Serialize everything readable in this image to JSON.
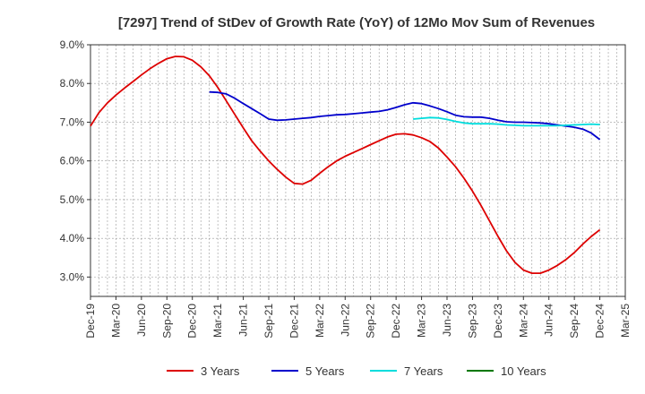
{
  "chart_data": {
    "type": "line",
    "title": "[7297]  Trend of StDev of Growth Rate (YoY) of 12Mo Mov Sum of Revenues",
    "xlabel": "",
    "ylabel": "",
    "ylim": [
      2.5,
      9.0
    ],
    "y_ticks": [
      3.0,
      4.0,
      5.0,
      6.0,
      7.0,
      8.0,
      9.0
    ],
    "y_tick_labels": [
      "3.0%",
      "4.0%",
      "5.0%",
      "6.0%",
      "7.0%",
      "8.0%",
      "9.0%"
    ],
    "x_tick_labels": [
      "Dec-19",
      "Mar-20",
      "Jun-20",
      "Sep-20",
      "Dec-20",
      "Mar-21",
      "Jun-21",
      "Sep-21",
      "Dec-21",
      "Mar-22",
      "Jun-22",
      "Sep-22",
      "Dec-22",
      "Mar-23",
      "Jun-23",
      "Sep-23",
      "Dec-23",
      "Mar-24",
      "Jun-24",
      "Sep-24",
      "Dec-24",
      "Mar-25"
    ],
    "x_range_months": [
      0,
      63
    ],
    "grid": true,
    "legend_position": "bottom",
    "series": [
      {
        "name": "3 Years",
        "color": "#dd0000",
        "x": [
          0,
          1,
          2,
          3,
          4,
          5,
          6,
          7,
          8,
          9,
          10,
          11,
          12,
          13,
          14,
          15,
          16,
          17,
          18,
          19,
          20,
          21,
          22,
          23,
          24,
          25,
          26,
          27,
          28,
          29,
          30,
          31,
          32,
          33,
          34,
          35,
          36,
          37,
          38,
          39,
          40,
          41,
          42,
          43,
          44,
          45,
          46,
          47,
          48,
          49,
          50,
          51,
          52,
          53,
          54,
          55,
          56,
          57,
          58,
          59,
          60
        ],
        "values": [
          6.9,
          7.25,
          7.5,
          7.7,
          7.88,
          8.05,
          8.22,
          8.38,
          8.52,
          8.64,
          8.7,
          8.69,
          8.6,
          8.43,
          8.2,
          7.9,
          7.55,
          7.2,
          6.85,
          6.52,
          6.25,
          6.0,
          5.78,
          5.58,
          5.42,
          5.4,
          5.5,
          5.68,
          5.85,
          6.0,
          6.12,
          6.22,
          6.32,
          6.42,
          6.52,
          6.62,
          6.69,
          6.7,
          6.67,
          6.6,
          6.5,
          6.33,
          6.1,
          5.85,
          5.55,
          5.22,
          4.85,
          4.45,
          4.05,
          3.68,
          3.38,
          3.18,
          3.1,
          3.1,
          3.18,
          3.3,
          3.45,
          3.63,
          3.85,
          4.05,
          4.22
        ]
      },
      {
        "name": "5 Years",
        "color": "#0000cc",
        "x": [
          14,
          15,
          16,
          17,
          18,
          19,
          20,
          21,
          22,
          23,
          24,
          25,
          26,
          27,
          28,
          29,
          30,
          31,
          32,
          33,
          34,
          35,
          36,
          37,
          38,
          39,
          40,
          41,
          42,
          43,
          44,
          45,
          46,
          47,
          48,
          49,
          50,
          51,
          52,
          53,
          54,
          55,
          56,
          57,
          58,
          59,
          60
        ],
        "values": [
          7.78,
          7.77,
          7.73,
          7.62,
          7.48,
          7.35,
          7.22,
          7.08,
          7.05,
          7.06,
          7.08,
          7.1,
          7.12,
          7.15,
          7.17,
          7.19,
          7.2,
          7.22,
          7.24,
          7.26,
          7.28,
          7.32,
          7.38,
          7.45,
          7.5,
          7.48,
          7.42,
          7.35,
          7.27,
          7.18,
          7.14,
          7.13,
          7.13,
          7.1,
          7.05,
          7.01,
          7.0,
          7.0,
          6.99,
          6.98,
          6.96,
          6.93,
          6.9,
          6.87,
          6.82,
          6.72,
          6.55
        ]
      },
      {
        "name": "7 Years",
        "color": "#00dddd",
        "x": [
          38,
          39,
          40,
          41,
          42,
          43,
          44,
          45,
          46,
          47,
          48,
          49,
          50,
          51,
          52,
          53,
          54,
          55,
          56,
          57,
          58,
          59,
          60
        ],
        "values": [
          7.08,
          7.1,
          7.12,
          7.11,
          7.07,
          7.02,
          6.98,
          6.96,
          6.96,
          6.96,
          6.95,
          6.93,
          6.92,
          6.91,
          6.91,
          6.91,
          6.91,
          6.91,
          6.92,
          6.93,
          6.94,
          6.95,
          6.94
        ]
      },
      {
        "name": "10 Years",
        "color": "#007700",
        "x": [],
        "values": []
      }
    ]
  }
}
